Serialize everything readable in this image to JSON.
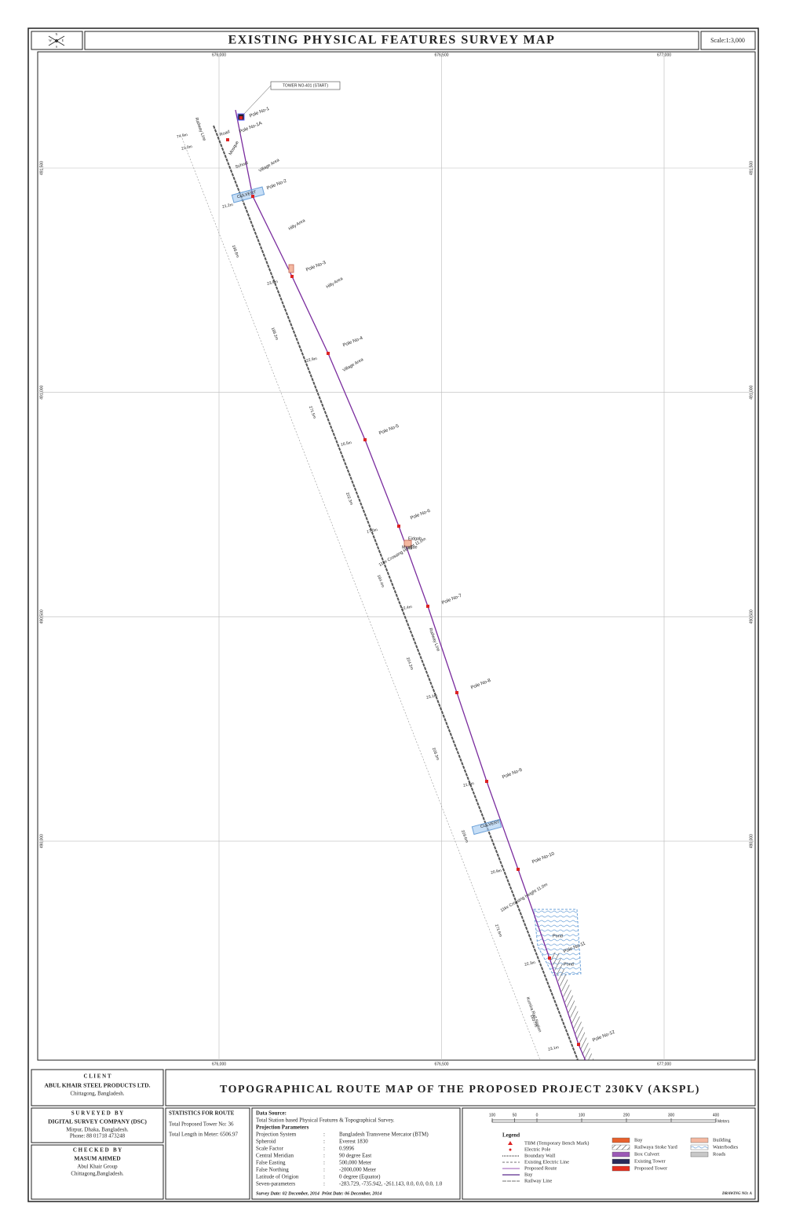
{
  "header": {
    "compass": [
      "N",
      "W",
      "E",
      "S"
    ],
    "title": "EXISTING PHYSICAL FEATURES SURVEY MAP",
    "scale": "Scale:1:3,000"
  },
  "map": {
    "easting_ticks": [
      {
        "value": 676000,
        "label": "676,000"
      },
      {
        "value": 676500,
        "label": "676,500"
      },
      {
        "value": 677000,
        "label": "677,000"
      }
    ],
    "northing_ticks": [
      {
        "value": 491500,
        "label": "491,500"
      },
      {
        "value": 491000,
        "label": "491,000"
      },
      {
        "value": 490500,
        "label": "490,500"
      },
      {
        "value": 490000,
        "label": "490,000"
      }
    ],
    "start_tower": "TOWER NO-401 (START)",
    "poles": [
      "Pole No-1",
      "Pole No-1A",
      "Pole No-2",
      "Pole No-3",
      "Pole No-4",
      "Pole No-5",
      "Pole No-6",
      "Pole No-7",
      "Pole No-8",
      "Pole No-9",
      "Pole No-10",
      "Pole No-11",
      "Pole No-12"
    ],
    "features": [
      "Railway Line",
      "Road",
      "Mosque",
      "School",
      "Village Area",
      "CULVERT",
      "Hilly Area",
      "Hilly Area",
      "Village Area",
      "Eidgah",
      "Mosque",
      "11kv Crossing Height 11.0m",
      "Railway Line",
      "CULVERT",
      "11kv Crossing Height 11.0m",
      "Pond",
      "Pond",
      "Kumira Rail Station"
    ],
    "span_lengths": [
      "198.8m",
      "188.2m",
      "271.5m",
      "202.3m",
      "184.4m",
      "204.2m",
      "208.3m",
      "209.6m",
      "271.6m",
      "183.7m"
    ],
    "offsets": [
      "74.9m",
      "21.0m",
      "21.2m",
      "23.9m",
      "22.9m",
      "16.5m",
      "17.0m",
      "22.4m",
      "23.1m",
      "21.8m",
      "20.9m",
      "22.3m",
      "23.1m"
    ]
  },
  "client": {
    "heading": "C L I E N T",
    "name": "ABUL KHAIR STEEL PRODUCTS LTD.",
    "address": "Chittagong, Bangladesh."
  },
  "project_title": "TOPOGRAPHICAL ROUTE MAP OF THE PROPOSED PROJECT 230KV (AKSPL)",
  "surveyed_by": {
    "heading": "S U R V E Y E D   B Y",
    "name": "DIGITAL SURVEY COMPANY (DSC)",
    "address": "Mirpur, Dhaka, Bangladesh.",
    "phone": "Phone: 88 01718 473248"
  },
  "checked_by": {
    "heading": "C H E C K E D   B Y",
    "name": "MASUM AHMED",
    "org": "Abul Khair Group",
    "address": "Chittagong,Bangladesh."
  },
  "statistics": {
    "heading": "STATISTICS FOR ROUTE",
    "lines": [
      "Total Proposed Tower No: 36",
      "Total Length in Meter: 6506.97"
    ]
  },
  "data_source": {
    "heading": "Data Source:",
    "text": "Total Station based Physical Features & Topographical Survey.",
    "projection_heading": "Projection Parameters",
    "rows": [
      [
        "Projection System",
        ":",
        "Bangladesh Transverse Mercator (BTM)"
      ],
      [
        "Spheroid",
        ":",
        "Everest 1830"
      ],
      [
        "Scale Factor",
        ":",
        "0.9996"
      ],
      [
        "Central Meridian",
        ":",
        "90 degree East"
      ],
      [
        "False Easting",
        ":",
        "500,000 Meter"
      ],
      [
        "False Northing",
        ":",
        "-2000,000 Meter"
      ],
      [
        "Latitude of Origion",
        ":",
        "0 degree (Equator)"
      ],
      [
        "Seven-parameters",
        ":",
        "-283.729, -735.942, -261.143, 0.0, 0.0, 0.0, 1.0"
      ]
    ],
    "dates": "Survey Date: 02 December, 2014  Print Date: 06 December, 2014"
  },
  "scale_bar": {
    "ticks": [
      {
        "value": -100,
        "label": "100"
      },
      {
        "value": -50,
        "label": "50"
      },
      0,
      100,
      200,
      300,
      400
    ],
    "unit": "Meters"
  },
  "legend": {
    "heading": "Legend",
    "items": [
      "TBM (Temporary Bench Mark)",
      "Electric Pole",
      "Boundary Wall",
      "Existing Electric Line",
      "Proposed Route",
      "Bay",
      "Railway Line",
      "Bay",
      "Railwaya Stoke Yard",
      "Box Culvert",
      "Existing Tower",
      "Proposed Tower",
      "Building",
      "Waterbodies",
      "Roads"
    ]
  },
  "drawing_no": "DRAWING NO: A"
}
